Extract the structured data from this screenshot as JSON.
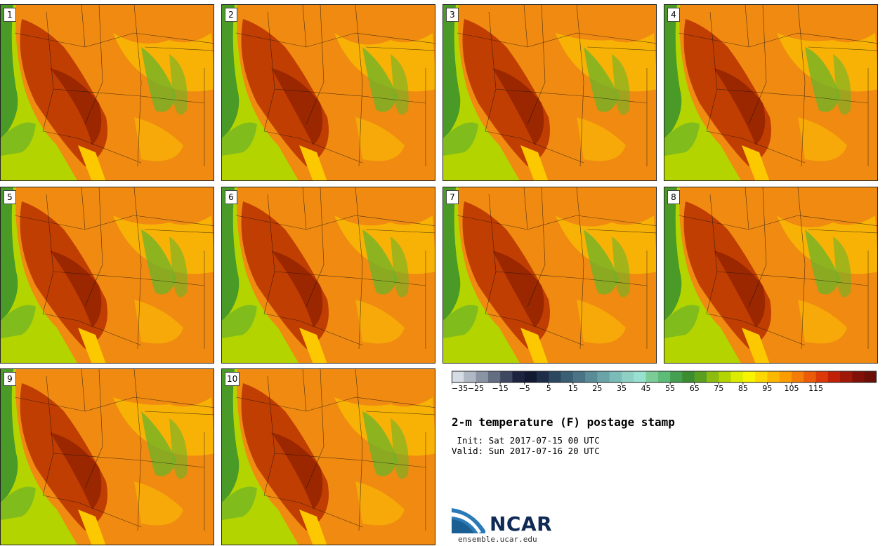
{
  "page": {
    "title": "2-m temperature (F) postage stamp",
    "init": " Init: Sat 2017-07-15 00 UTC",
    "valid": "Valid: Sun 2017-07-16 20 UTC"
  },
  "members": [
    {
      "label": "1"
    },
    {
      "label": "2"
    },
    {
      "label": "3"
    },
    {
      "label": "4"
    },
    {
      "label": "5"
    },
    {
      "label": "6"
    },
    {
      "label": "7"
    },
    {
      "label": "8"
    },
    {
      "label": "9"
    },
    {
      "label": "10"
    }
  ],
  "colorbar": {
    "ticks": [
      "−35",
      "−25",
      "−15",
      "−5",
      "5",
      "15",
      "25",
      "35",
      "45",
      "55",
      "65",
      "75",
      "85",
      "95",
      "105",
      "115"
    ],
    "colors": [
      "#d6dce4",
      "#b0b8c4",
      "#8a94a4",
      "#646e82",
      "#3e4860",
      "#1c2440",
      "#121a32",
      "#1e2e48",
      "#2c4860",
      "#3a5e74",
      "#4a7486",
      "#5a8c98",
      "#6aa4a8",
      "#7cbcb8",
      "#8ed0c4",
      "#98e0d0",
      "#7ccc98",
      "#5cbc78",
      "#44a050",
      "#3c8c30",
      "#5aa020",
      "#8cbc10",
      "#b4d400",
      "#dcec00",
      "#f8f400",
      "#fcd800",
      "#fcb800",
      "#fc9c00",
      "#f47c08",
      "#ec5c08",
      "#dc3808",
      "#c02008",
      "#a01808",
      "#801008",
      "#6a1008"
    ]
  },
  "logo": {
    "name": "NCAR",
    "url": "ensemble.ucar.edu"
  },
  "map_colors": {
    "ocean_deep": "#4a9a28",
    "ocean_shallow": "#b4d400",
    "hot": "#b83000",
    "warm": "#f08a10",
    "mild": "#fcc800",
    "cool": "#6ab428"
  }
}
